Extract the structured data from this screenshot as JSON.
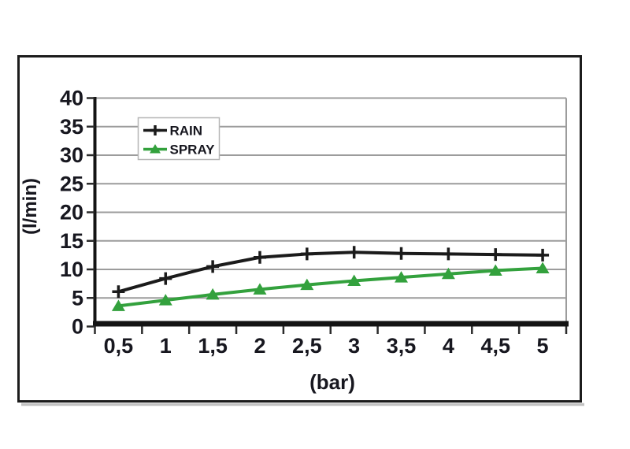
{
  "chart_data": {
    "type": "line",
    "title": "",
    "xlabel": "(bar)",
    "ylabel": "(l/min)",
    "categories": [
      "0,5",
      "1",
      "1,5",
      "2",
      "2,5",
      "3",
      "3,5",
      "4",
      "4,5",
      "5"
    ],
    "x_values": [
      0.5,
      1,
      1.5,
      2,
      2.5,
      3,
      3.5,
      4,
      4.5,
      5
    ],
    "series": [
      {
        "name": "RAIN",
        "color": "#1b1b1b",
        "marker": "plus",
        "values": [
          6.1,
          8.4,
          10.5,
          12.1,
          12.7,
          13,
          12.8,
          12.7,
          12.6,
          12.5
        ]
      },
      {
        "name": "SPRAY",
        "color": "#33a13d",
        "marker": "triangle",
        "values": [
          3.6,
          4.6,
          5.6,
          6.5,
          7.3,
          8,
          8.6,
          9.2,
          9.8,
          10.2
        ]
      }
    ],
    "ylim": [
      0,
      40
    ],
    "yticks": [
      0,
      5,
      10,
      15,
      20,
      25,
      30,
      35,
      40
    ],
    "grid": true,
    "legend_position": "top-left"
  },
  "colors": {
    "background": "#ffffff",
    "gridline": "#9c9c9c",
    "axis": "#141414",
    "tick": "#2b2b2b",
    "text": "#17171f",
    "frame": "#1c1c1c",
    "frame_shadow": "#c2c2c2",
    "legend_border": "#b6b6b6",
    "legend_fill": "#ffffff"
  }
}
